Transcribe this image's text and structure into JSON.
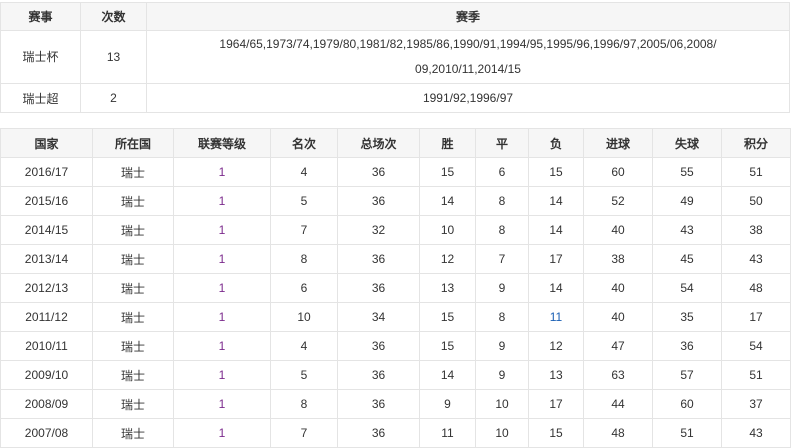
{
  "honors": {
    "headers": [
      "赛事",
      "次数",
      "赛季"
    ],
    "rows": [
      {
        "competition": "瑞士杯",
        "count": "13",
        "seasons": "1964/65,1973/74,1979/80,1981/82,1985/86,1990/91,1994/95,1995/96,1996/97,2005/06,2008/09,2010/11,2014/15"
      },
      {
        "competition": "瑞士超",
        "count": "2",
        "seasons": "1991/92,1996/97"
      }
    ]
  },
  "league": {
    "headers": [
      "国家",
      "所在国",
      "联赛等级",
      "名次",
      "总场次",
      "胜",
      "平",
      "负",
      "进球",
      "失球",
      "积分"
    ],
    "rows": [
      [
        "2016/17",
        "瑞士",
        "1",
        "4",
        "36",
        "15",
        "6",
        "15",
        "60",
        "55",
        "51"
      ],
      [
        "2015/16",
        "瑞士",
        "1",
        "5",
        "36",
        "14",
        "8",
        "14",
        "52",
        "49",
        "50"
      ],
      [
        "2014/15",
        "瑞士",
        "1",
        "7",
        "32",
        "10",
        "8",
        "14",
        "40",
        "43",
        "38"
      ],
      [
        "2013/14",
        "瑞士",
        "1",
        "8",
        "36",
        "12",
        "7",
        "17",
        "38",
        "45",
        "43"
      ],
      [
        "2012/13",
        "瑞士",
        "1",
        "6",
        "36",
        "13",
        "9",
        "14",
        "40",
        "54",
        "48"
      ],
      [
        "2011/12",
        "瑞士",
        "1",
        "10",
        "34",
        "15",
        "8",
        "11",
        "40",
        "35",
        "17"
      ],
      [
        "2010/11",
        "瑞士",
        "1",
        "4",
        "36",
        "15",
        "9",
        "12",
        "47",
        "36",
        "54"
      ],
      [
        "2009/10",
        "瑞士",
        "1",
        "5",
        "36",
        "14",
        "9",
        "13",
        "63",
        "57",
        "51"
      ],
      [
        "2008/09",
        "瑞士",
        "1",
        "8",
        "36",
        "9",
        "10",
        "17",
        "44",
        "60",
        "37"
      ],
      [
        "2007/08",
        "瑞士",
        "1",
        "7",
        "36",
        "11",
        "10",
        "15",
        "48",
        "51",
        "43"
      ]
    ]
  },
  "colors": {
    "league_level": "#7b2a8c",
    "highlight": "#1a5fb4"
  }
}
